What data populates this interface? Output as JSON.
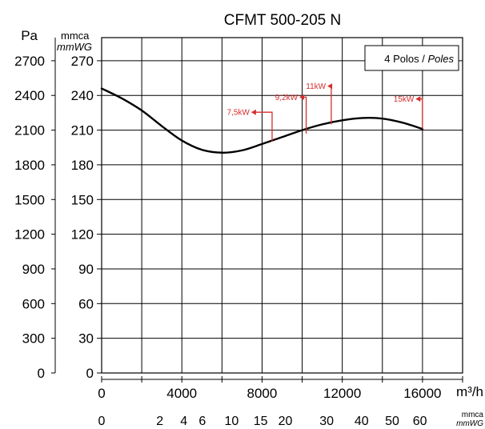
{
  "chart_data": {
    "type": "line",
    "title": "CFMT 500-205 N",
    "legend": {
      "text": "4 Polos / ",
      "text_italic": "Poles"
    },
    "x_axis": {
      "unit_label": "m³/h",
      "range": [
        0,
        18000
      ],
      "tick_values": [
        0,
        2000,
        4000,
        6000,
        8000,
        10000,
        12000,
        14000,
        16000,
        18000
      ],
      "tick_labels": [
        {
          "value": 0,
          "label": "0"
        },
        {
          "value": 4000,
          "label": "4000"
        },
        {
          "value": 8000,
          "label": "8000"
        },
        {
          "value": 12000,
          "label": "12000"
        },
        {
          "value": 16000,
          "label": "16000"
        }
      ]
    },
    "y_axis_pa": {
      "unit_label": "Pa",
      "range": [
        0,
        2900
      ],
      "tick_labels": [
        "0",
        "300",
        "600",
        "900",
        "1200",
        "1500",
        "1800",
        "2100",
        "2400",
        "2700"
      ],
      "tick_values": [
        0,
        300,
        600,
        900,
        1200,
        1500,
        1800,
        2100,
        2400,
        2700
      ]
    },
    "y_axis_mmca": {
      "unit_label_1": "mmca",
      "unit_label_2": "mmWG",
      "tick_labels": [
        "0",
        "30",
        "60",
        "90",
        "120",
        "150",
        "180",
        "210",
        "240",
        "270"
      ],
      "tick_values": [
        0,
        30,
        60,
        90,
        120,
        150,
        180,
        210,
        240,
        270
      ]
    },
    "dynamic_pressure_axis": {
      "unit_label_1": "mmca",
      "unit_label_2": "mmWG",
      "ticks": [
        {
          "label": "0",
          "flow": 0
        },
        {
          "label": "2",
          "flow": 2900
        },
        {
          "label": "4",
          "flow": 4100
        },
        {
          "label": "6",
          "flow": 5020
        },
        {
          "label": "10",
          "flow": 6480
        },
        {
          "label": "15",
          "flow": 7930
        },
        {
          "label": "20",
          "flow": 9160
        },
        {
          "label": "30",
          "flow": 11220
        },
        {
          "label": "40",
          "flow": 12960
        },
        {
          "label": "50",
          "flow": 14490
        },
        {
          "label": "60",
          "flow": 15870
        }
      ]
    },
    "grid": true,
    "series": [
      {
        "color": "#000000",
        "x": [
          0,
          1000,
          2000,
          3000,
          4000,
          5000,
          6000,
          7000,
          8000,
          9000,
          10000,
          11000,
          12000,
          13000,
          14000,
          15000,
          16000
        ],
        "y": [
          2460,
          2375,
          2270,
          2135,
          2010,
          1930,
          1905,
          1925,
          1980,
          2040,
          2100,
          2150,
          2185,
          2205,
          2200,
          2165,
          2110
        ]
      }
    ],
    "power_markers": [
      {
        "label": "7,5kW",
        "flow": 8500,
        "pressure_low": 2000,
        "pressure_high": 2255
      },
      {
        "label": "9,2kW",
        "flow": 10200,
        "pressure_low": 2070,
        "pressure_high": 2385
      },
      {
        "label": "11kW",
        "flow": 11450,
        "pressure_low": 2150,
        "pressure_high": 2480
      },
      {
        "label": "15kW",
        "flow": 16000,
        "pressure_low": 2110,
        "pressure_high": 2370
      }
    ],
    "colors": {
      "curve": "#000000",
      "power_markers": "#d62d2d",
      "grid": "#000000"
    }
  }
}
